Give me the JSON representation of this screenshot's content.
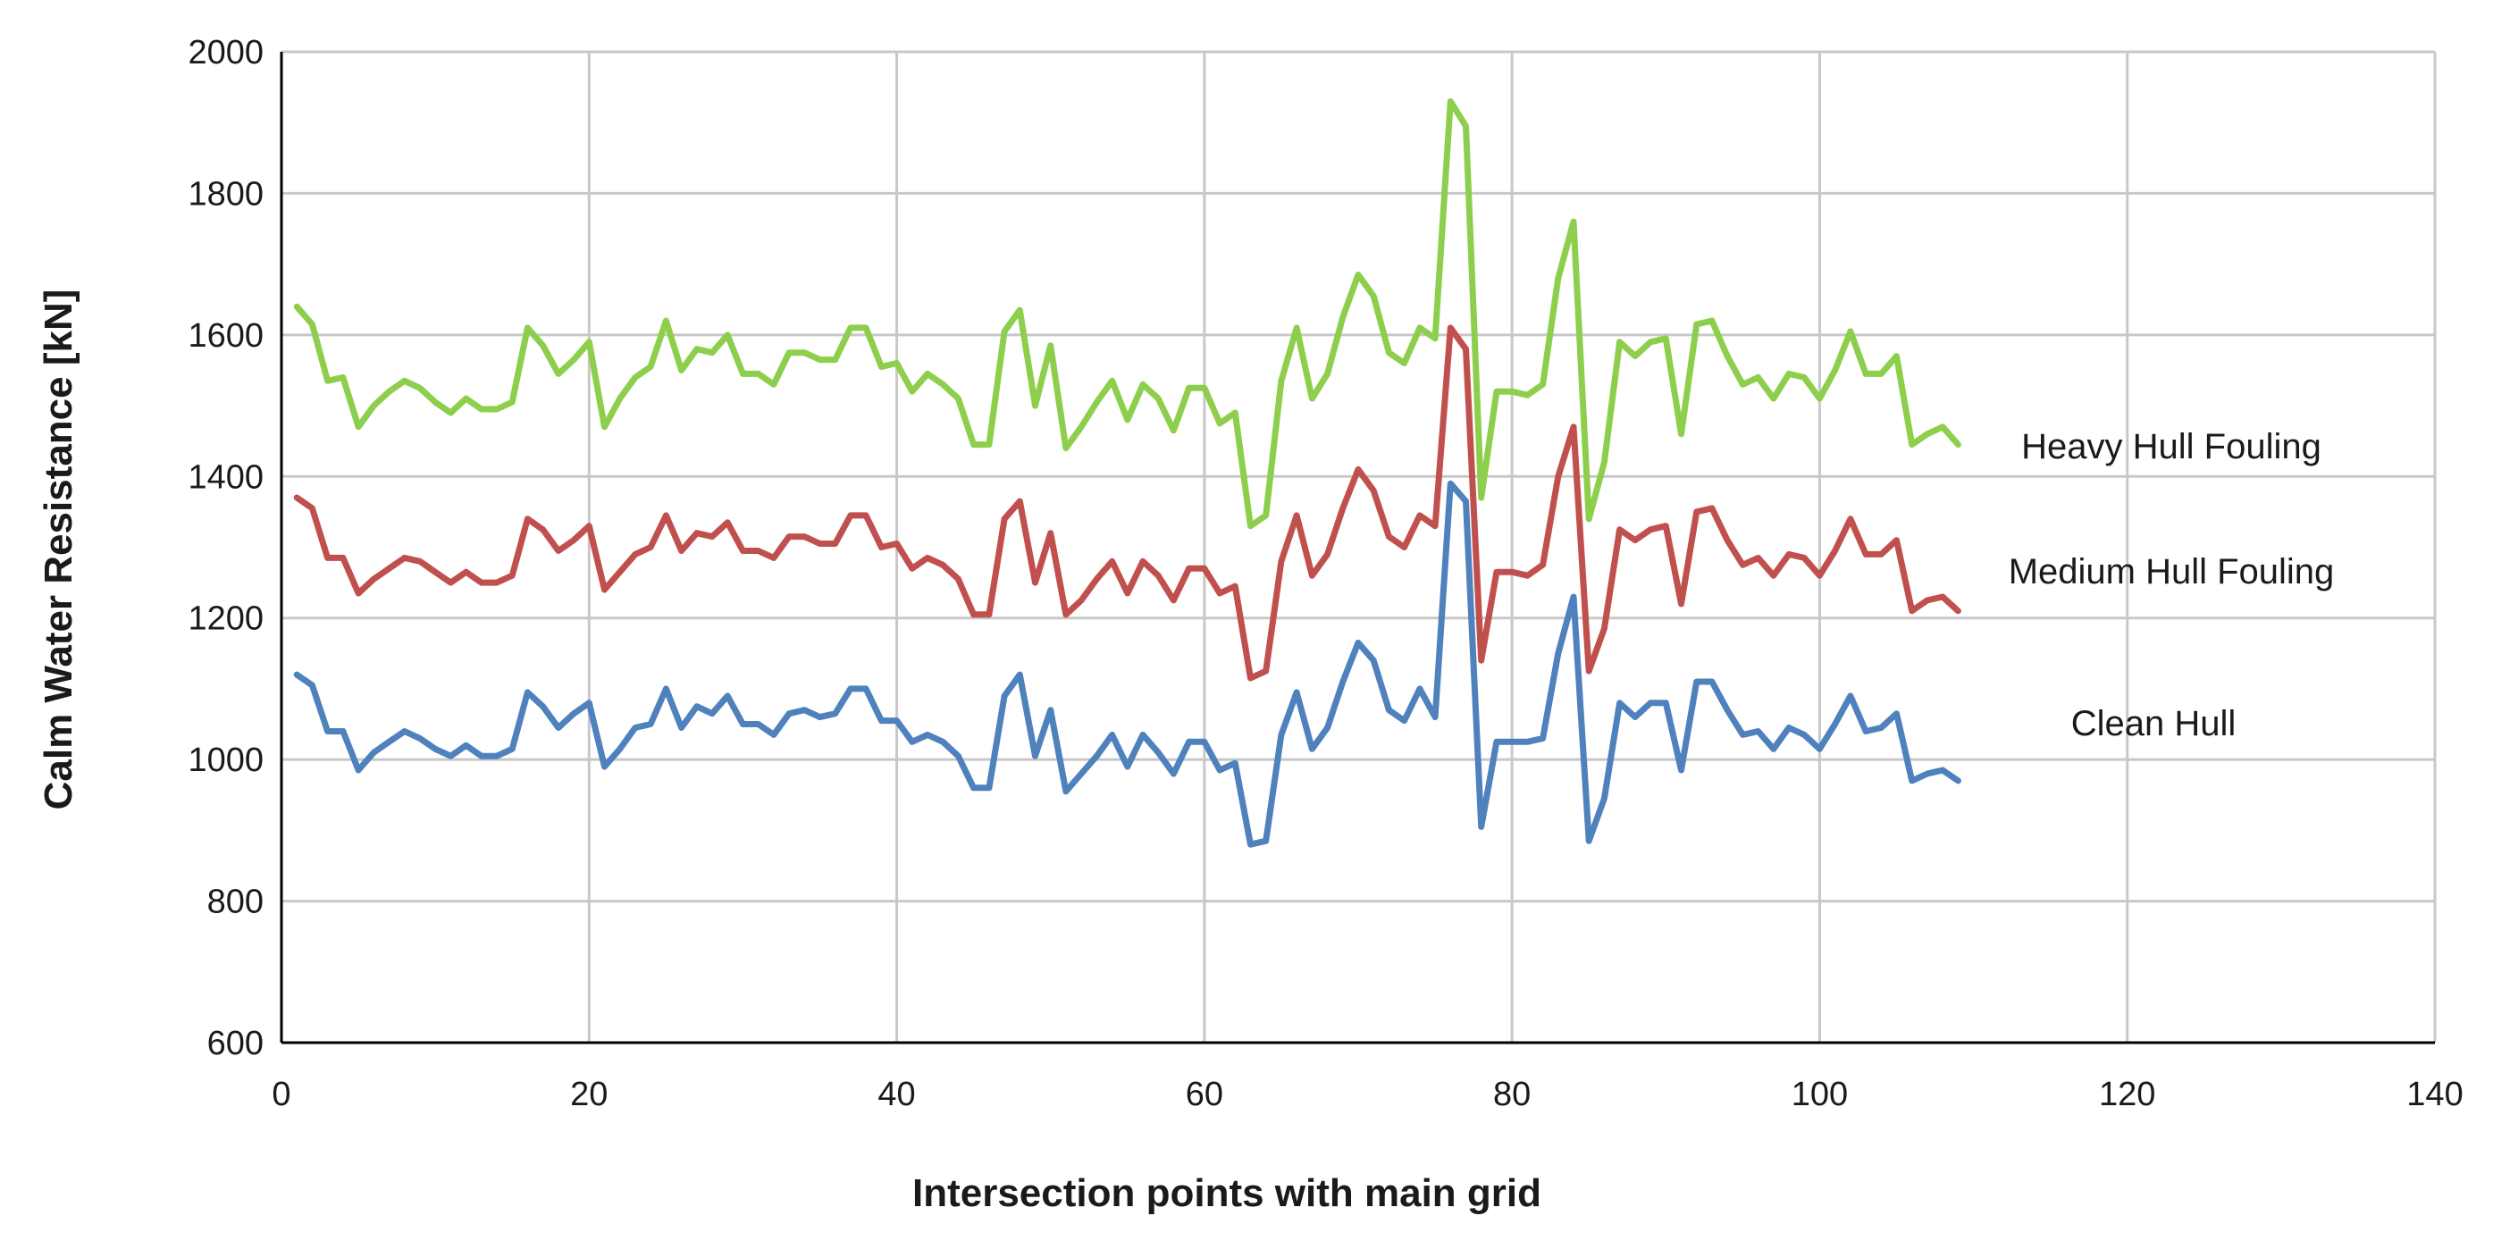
{
  "chart_data": {
    "type": "line",
    "xlabel": "Intersection points with main grid",
    "ylabel": "Calm Water Resistance [kN]",
    "xlim": [
      0,
      140
    ],
    "ylim": [
      600,
      2000
    ],
    "x_ticks": [
      0,
      20,
      40,
      60,
      80,
      100,
      120,
      140
    ],
    "y_ticks": [
      600,
      800,
      1000,
      1200,
      1400,
      1600,
      1800,
      2000
    ],
    "grid": true,
    "legend": "inline labels at right end of each line",
    "series": [
      {
        "name": "Heavy Hull Fouling",
        "color": "#8dcf4c",
        "points": [
          [
            1,
            1640
          ],
          [
            2,
            1615
          ],
          [
            3,
            1535
          ],
          [
            4,
            1540
          ],
          [
            5,
            1470
          ],
          [
            6,
            1500
          ],
          [
            7,
            1520
          ],
          [
            8,
            1535
          ],
          [
            9,
            1525
          ],
          [
            10,
            1505
          ],
          [
            11,
            1490
          ],
          [
            12,
            1510
          ],
          [
            13,
            1495
          ],
          [
            14,
            1495
          ],
          [
            15,
            1505
          ],
          [
            16,
            1610
          ],
          [
            17,
            1585
          ],
          [
            18,
            1545
          ],
          [
            19,
            1565
          ],
          [
            20,
            1590
          ],
          [
            21,
            1470
          ],
          [
            22,
            1510
          ],
          [
            23,
            1540
          ],
          [
            24,
            1555
          ],
          [
            25,
            1620
          ],
          [
            26,
            1550
          ],
          [
            27,
            1580
          ],
          [
            28,
            1575
          ],
          [
            29,
            1600
          ],
          [
            30,
            1545
          ],
          [
            31,
            1545
          ],
          [
            32,
            1530
          ],
          [
            33,
            1575
          ],
          [
            34,
            1575
          ],
          [
            35,
            1565
          ],
          [
            36,
            1565
          ],
          [
            37,
            1610
          ],
          [
            38,
            1610
          ],
          [
            39,
            1555
          ],
          [
            40,
            1560
          ],
          [
            41,
            1520
          ],
          [
            42,
            1545
          ],
          [
            43,
            1530
          ],
          [
            44,
            1510
          ],
          [
            45,
            1445
          ],
          [
            46,
            1445
          ],
          [
            47,
            1605
          ],
          [
            48,
            1635
          ],
          [
            49,
            1500
          ],
          [
            50,
            1585
          ],
          [
            51,
            1440
          ],
          [
            52,
            1470
          ],
          [
            53,
            1505
          ],
          [
            54,
            1535
          ],
          [
            55,
            1480
          ],
          [
            56,
            1530
          ],
          [
            57,
            1510
          ],
          [
            58,
            1465
          ],
          [
            59,
            1525
          ],
          [
            60,
            1525
          ],
          [
            61,
            1475
          ],
          [
            62,
            1490
          ],
          [
            63,
            1330
          ],
          [
            64,
            1345
          ],
          [
            65,
            1535
          ],
          [
            66,
            1610
          ],
          [
            67,
            1510
          ],
          [
            68,
            1545
          ],
          [
            69,
            1625
          ],
          [
            70,
            1685
          ],
          [
            71,
            1655
          ],
          [
            72,
            1575
          ],
          [
            73,
            1560
          ],
          [
            74,
            1610
          ],
          [
            75,
            1595
          ],
          [
            76,
            1930
          ],
          [
            77,
            1895
          ],
          [
            78,
            1370
          ],
          [
            79,
            1520
          ],
          [
            80,
            1520
          ],
          [
            81,
            1515
          ],
          [
            82,
            1530
          ],
          [
            83,
            1680
          ],
          [
            84,
            1760
          ],
          [
            85,
            1340
          ],
          [
            86,
            1420
          ],
          [
            87,
            1590
          ],
          [
            88,
            1570
          ],
          [
            89,
            1590
          ],
          [
            90,
            1595
          ],
          [
            91,
            1460
          ],
          [
            92,
            1615
          ],
          [
            93,
            1620
          ],
          [
            94,
            1570
          ],
          [
            95,
            1530
          ],
          [
            96,
            1540
          ],
          [
            97,
            1510
          ],
          [
            98,
            1545
          ],
          [
            99,
            1540
          ],
          [
            100,
            1510
          ],
          [
            101,
            1550
          ],
          [
            102,
            1605
          ],
          [
            103,
            1545
          ],
          [
            104,
            1545
          ],
          [
            105,
            1570
          ],
          [
            106,
            1445
          ],
          [
            107,
            1460
          ],
          [
            108,
            1470
          ],
          [
            109,
            1445
          ]
        ]
      },
      {
        "name": "Medium Hull Fouling",
        "color": "#c0504d",
        "points": [
          [
            1,
            1370
          ],
          [
            2,
            1355
          ],
          [
            3,
            1285
          ],
          [
            4,
            1285
          ],
          [
            5,
            1235
          ],
          [
            6,
            1255
          ],
          [
            7,
            1270
          ],
          [
            8,
            1285
          ],
          [
            9,
            1280
          ],
          [
            10,
            1265
          ],
          [
            11,
            1250
          ],
          [
            12,
            1265
          ],
          [
            13,
            1250
          ],
          [
            14,
            1250
          ],
          [
            15,
            1260
          ],
          [
            16,
            1340
          ],
          [
            17,
            1325
          ],
          [
            18,
            1295
          ],
          [
            19,
            1310
          ],
          [
            20,
            1330
          ],
          [
            21,
            1240
          ],
          [
            22,
            1265
          ],
          [
            23,
            1290
          ],
          [
            24,
            1300
          ],
          [
            25,
            1345
          ],
          [
            26,
            1295
          ],
          [
            27,
            1320
          ],
          [
            28,
            1315
          ],
          [
            29,
            1335
          ],
          [
            30,
            1295
          ],
          [
            31,
            1295
          ],
          [
            32,
            1285
          ],
          [
            33,
            1315
          ],
          [
            34,
            1315
          ],
          [
            35,
            1305
          ],
          [
            36,
            1305
          ],
          [
            37,
            1345
          ],
          [
            38,
            1345
          ],
          [
            39,
            1300
          ],
          [
            40,
            1305
          ],
          [
            41,
            1270
          ],
          [
            42,
            1285
          ],
          [
            43,
            1275
          ],
          [
            44,
            1255
          ],
          [
            45,
            1205
          ],
          [
            46,
            1205
          ],
          [
            47,
            1340
          ],
          [
            48,
            1365
          ],
          [
            49,
            1250
          ],
          [
            50,
            1320
          ],
          [
            51,
            1205
          ],
          [
            52,
            1225
          ],
          [
            53,
            1255
          ],
          [
            54,
            1280
          ],
          [
            55,
            1235
          ],
          [
            56,
            1280
          ],
          [
            57,
            1260
          ],
          [
            58,
            1225
          ],
          [
            59,
            1270
          ],
          [
            60,
            1270
          ],
          [
            61,
            1235
          ],
          [
            62,
            1245
          ],
          [
            63,
            1115
          ],
          [
            64,
            1125
          ],
          [
            65,
            1280
          ],
          [
            66,
            1345
          ],
          [
            67,
            1260
          ],
          [
            68,
            1290
          ],
          [
            69,
            1355
          ],
          [
            70,
            1410
          ],
          [
            71,
            1380
          ],
          [
            72,
            1315
          ],
          [
            73,
            1300
          ],
          [
            74,
            1345
          ],
          [
            75,
            1330
          ],
          [
            76,
            1610
          ],
          [
            77,
            1580
          ],
          [
            78,
            1140
          ],
          [
            79,
            1265
          ],
          [
            80,
            1265
          ],
          [
            81,
            1260
          ],
          [
            82,
            1275
          ],
          [
            83,
            1400
          ],
          [
            84,
            1470
          ],
          [
            85,
            1125
          ],
          [
            86,
            1185
          ],
          [
            87,
            1325
          ],
          [
            88,
            1310
          ],
          [
            89,
            1325
          ],
          [
            90,
            1330
          ],
          [
            91,
            1220
          ],
          [
            92,
            1350
          ],
          [
            93,
            1355
          ],
          [
            94,
            1310
          ],
          [
            95,
            1275
          ],
          [
            96,
            1285
          ],
          [
            97,
            1260
          ],
          [
            98,
            1290
          ],
          [
            99,
            1285
          ],
          [
            100,
            1260
          ],
          [
            101,
            1295
          ],
          [
            102,
            1340
          ],
          [
            103,
            1290
          ],
          [
            104,
            1290
          ],
          [
            105,
            1310
          ],
          [
            106,
            1210
          ],
          [
            107,
            1225
          ],
          [
            108,
            1230
          ],
          [
            109,
            1210
          ]
        ]
      },
      {
        "name": "Clean Hull",
        "color": "#4f81bd",
        "points": [
          [
            1,
            1120
          ],
          [
            2,
            1105
          ],
          [
            3,
            1040
          ],
          [
            4,
            1040
          ],
          [
            5,
            985
          ],
          [
            6,
            1010
          ],
          [
            7,
            1025
          ],
          [
            8,
            1040
          ],
          [
            9,
            1030
          ],
          [
            10,
            1015
          ],
          [
            11,
            1005
          ],
          [
            12,
            1020
          ],
          [
            13,
            1005
          ],
          [
            14,
            1005
          ],
          [
            15,
            1015
          ],
          [
            16,
            1095
          ],
          [
            17,
            1075
          ],
          [
            18,
            1045
          ],
          [
            19,
            1065
          ],
          [
            20,
            1080
          ],
          [
            21,
            990
          ],
          [
            22,
            1015
          ],
          [
            23,
            1045
          ],
          [
            24,
            1050
          ],
          [
            25,
            1100
          ],
          [
            26,
            1045
          ],
          [
            27,
            1075
          ],
          [
            28,
            1065
          ],
          [
            29,
            1090
          ],
          [
            30,
            1050
          ],
          [
            31,
            1050
          ],
          [
            32,
            1035
          ],
          [
            33,
            1065
          ],
          [
            34,
            1070
          ],
          [
            35,
            1060
          ],
          [
            36,
            1065
          ],
          [
            37,
            1100
          ],
          [
            38,
            1100
          ],
          [
            39,
            1055
          ],
          [
            40,
            1055
          ],
          [
            41,
            1025
          ],
          [
            42,
            1035
          ],
          [
            43,
            1025
          ],
          [
            44,
            1005
          ],
          [
            45,
            960
          ],
          [
            46,
            960
          ],
          [
            47,
            1090
          ],
          [
            48,
            1120
          ],
          [
            49,
            1005
          ],
          [
            50,
            1070
          ],
          [
            51,
            955
          ],
          [
            52,
            980
          ],
          [
            53,
            1005
          ],
          [
            54,
            1035
          ],
          [
            55,
            990
          ],
          [
            56,
            1035
          ],
          [
            57,
            1010
          ],
          [
            58,
            980
          ],
          [
            59,
            1025
          ],
          [
            60,
            1025
          ],
          [
            61,
            985
          ],
          [
            62,
            995
          ],
          [
            63,
            880
          ],
          [
            64,
            885
          ],
          [
            65,
            1035
          ],
          [
            66,
            1095
          ],
          [
            67,
            1015
          ],
          [
            68,
            1045
          ],
          [
            69,
            1110
          ],
          [
            70,
            1165
          ],
          [
            71,
            1140
          ],
          [
            72,
            1070
          ],
          [
            73,
            1055
          ],
          [
            74,
            1100
          ],
          [
            75,
            1060
          ],
          [
            76,
            1390
          ],
          [
            77,
            1365
          ],
          [
            78,
            905
          ],
          [
            79,
            1025
          ],
          [
            80,
            1025
          ],
          [
            81,
            1025
          ],
          [
            82,
            1030
          ],
          [
            83,
            1150
          ],
          [
            84,
            1230
          ],
          [
            85,
            885
          ],
          [
            86,
            945
          ],
          [
            87,
            1080
          ],
          [
            88,
            1060
          ],
          [
            89,
            1080
          ],
          [
            90,
            1080
          ],
          [
            91,
            985
          ],
          [
            92,
            1110
          ],
          [
            93,
            1110
          ],
          [
            94,
            1070
          ],
          [
            95,
            1035
          ],
          [
            96,
            1040
          ],
          [
            97,
            1015
          ],
          [
            98,
            1045
          ],
          [
            99,
            1035
          ],
          [
            100,
            1015
          ],
          [
            101,
            1050
          ],
          [
            102,
            1090
          ],
          [
            103,
            1040
          ],
          [
            104,
            1045
          ],
          [
            105,
            1065
          ],
          [
            106,
            970
          ],
          [
            107,
            980
          ],
          [
            108,
            985
          ],
          [
            109,
            970
          ]
        ]
      }
    ]
  }
}
